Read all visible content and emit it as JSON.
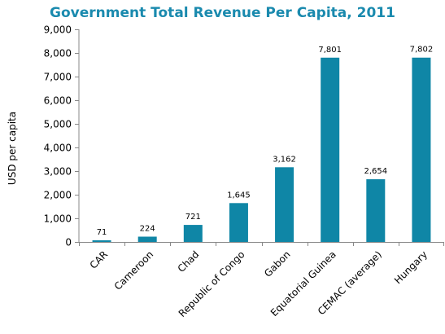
{
  "chart_data": {
    "type": "bar",
    "title": "Government Total Revenue Per Capita, 2011",
    "xlabel": "",
    "ylabel": "USD per capita",
    "categories": [
      "CAR",
      "Cameroon",
      "Chad",
      "Republic of Congo",
      "Gabon",
      "Equatorial Guinea",
      "CEMAC (average)",
      "Hungary"
    ],
    "values": [
      71,
      224,
      721,
      1645,
      3162,
      7801,
      2654,
      7802
    ],
    "data_labels": [
      "71",
      "224",
      "721",
      "1,645",
      "3,162",
      "7,801",
      "2,654",
      "7,802"
    ],
    "ylim": [
      0,
      9000
    ],
    "yticks": [
      0,
      1000,
      2000,
      3000,
      4000,
      5000,
      6000,
      7000,
      8000,
      9000
    ],
    "ytick_labels": [
      "0",
      "1,000",
      "2,000",
      "3,000",
      "4,000",
      "5,000",
      "6,000",
      "7,000",
      "8,000",
      "9,000"
    ],
    "grid": false,
    "legend": "none",
    "bar_color": "#0f86a6",
    "title_color": "#1a8aae"
  }
}
